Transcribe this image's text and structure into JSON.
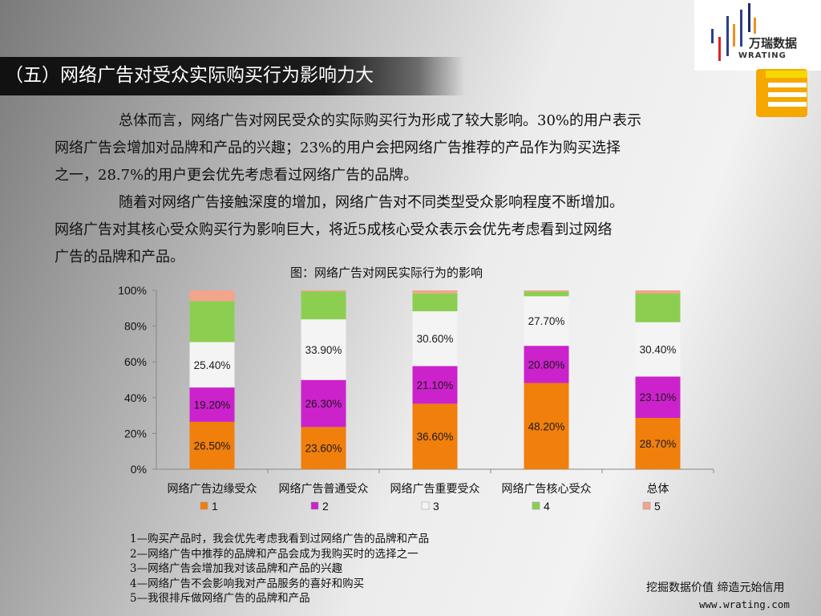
{
  "header": {
    "title": "（五）网络广告对受众实际购买行为影响力大",
    "logo_name": "万瑞数据",
    "logo_en": "WRATING"
  },
  "body": {
    "para1_line1": "总体而言，网络广告对网民受众的实际购买行为形成了较大影响。30%的用户表示",
    "para1_line2": "网络广告会增加对品牌和产品的兴趣；23%的用户会把网络广告推荐的产品作为购买选择",
    "para1_line3": "之一，28.7%的用户更会优先考虑看过网络广告的品牌。",
    "para2_line1": "随着对网络广告接触深度的增加，网络广告对不同类型受众影响程度不断增加。",
    "para2_line2": "网络广告对其核心受众购买行为影响巨大，将近5成核心受众表示会优先考虑看到过网络",
    "para2_line3": "广告的品牌和产品。"
  },
  "chart_data": {
    "type": "bar",
    "stacked": true,
    "title": "图：网络广告对网民实际行为的影响",
    "categories": [
      "网络广告边缘受众",
      "网络广告普通受众",
      "网络广告重要受众",
      "网络广告核心受众",
      "总体"
    ],
    "ylim": [
      0,
      100
    ],
    "ytick_labels": [
      "0%",
      "20%",
      "40%",
      "60%",
      "80%",
      "100%"
    ],
    "series": [
      {
        "name": "1",
        "color": "#f07f0c",
        "values": [
          26.5,
          23.6,
          36.6,
          48.2,
          28.7
        ],
        "labels": [
          "26.50%",
          "23.60%",
          "36.60%",
          "48.20%",
          "28.70%"
        ]
      },
      {
        "name": "2",
        "color": "#cc22cc",
        "values": [
          19.2,
          26.3,
          21.1,
          20.8,
          23.1
        ],
        "labels": [
          "19.20%",
          "26.30%",
          "21.10%",
          "20.80%",
          "23.10%"
        ]
      },
      {
        "name": "3",
        "color": "#f4f4f4",
        "values": [
          25.4,
          33.9,
          30.6,
          27.7,
          30.4
        ],
        "labels": [
          "25.40%",
          "33.90%",
          "30.60%",
          "27.70%",
          "30.40%"
        ]
      },
      {
        "name": "4",
        "color": "#8ccf50",
        "values": [
          22.8,
          15.6,
          10.0,
          2.6,
          16.0
        ],
        "labels": [
          "",
          "",
          "",
          "",
          ""
        ]
      },
      {
        "name": "5",
        "color": "#f2a48c",
        "values": [
          6.1,
          0.6,
          1.7,
          0.7,
          1.8
        ],
        "labels": [
          "",
          "",
          "",
          "",
          ""
        ]
      }
    ],
    "legend": "bottom"
  },
  "notes": [
    "1—购买产品时，我会优先考虑我看到过网络广告的品牌和产品",
    "2—网络广告中推荐的品牌和产品会成为我购买时的选择之一",
    "3—网络广告会增加我对该品牌和产品的兴趣",
    "4—网络广告不会影响我对产品服务的喜好和购买",
    "5—我很排斥做网络广告的品牌和产品"
  ],
  "footer": {
    "slogan": "挖掘数据价值   缔造元始信用",
    "website": "www.wrating.com"
  }
}
